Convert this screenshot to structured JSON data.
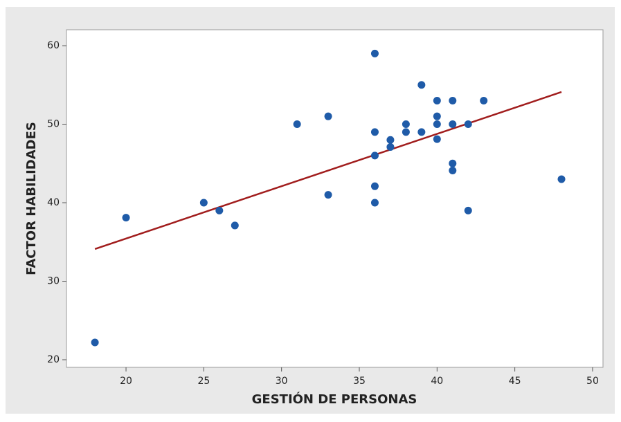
{
  "chart_data": {
    "type": "scatter",
    "x_label": "GESTIÓN DE PERSONAS",
    "y_label": "FACTOR HABILIDADES",
    "series": [
      {
        "color": "#1f5ba8",
        "x": [
          18,
          20,
          25,
          26,
          27,
          31,
          33,
          33,
          36,
          36,
          36,
          36,
          36,
          37,
          37,
          38,
          38,
          39,
          39,
          40,
          40,
          40,
          40,
          41,
          41,
          41,
          41,
          42,
          42,
          43,
          48
        ],
        "values": [
          22.2,
          38.1,
          40,
          39,
          37.1,
          50,
          51,
          41,
          59,
          49,
          46,
          42.1,
          40,
          48,
          47.1,
          50,
          49,
          55,
          49,
          53,
          51,
          50,
          48.1,
          53,
          50,
          45,
          44.1,
          50,
          39,
          53,
          43
        ]
      }
    ],
    "fit": {
      "color": "#a11d1d",
      "x": [
        18,
        48
      ],
      "values": [
        34.1,
        54.1
      ]
    },
    "xlim": [
      16.17,
      50.67
    ],
    "ylim": [
      19.03,
      62.03
    ],
    "xticks": [
      20,
      25,
      30,
      35,
      40,
      45,
      50
    ],
    "yticks": [
      20,
      30,
      40,
      50,
      60
    ]
  }
}
